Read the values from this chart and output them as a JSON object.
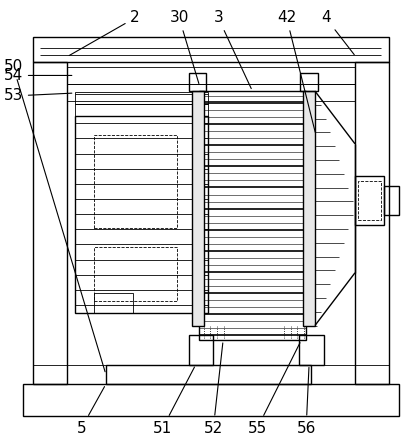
{
  "background_color": "#ffffff",
  "line_color": "#000000",
  "lw": 1.0,
  "tlw": 0.6,
  "figsize": [
    4.15,
    4.43
  ],
  "dpi": 100,
  "label_fontsize": 11
}
